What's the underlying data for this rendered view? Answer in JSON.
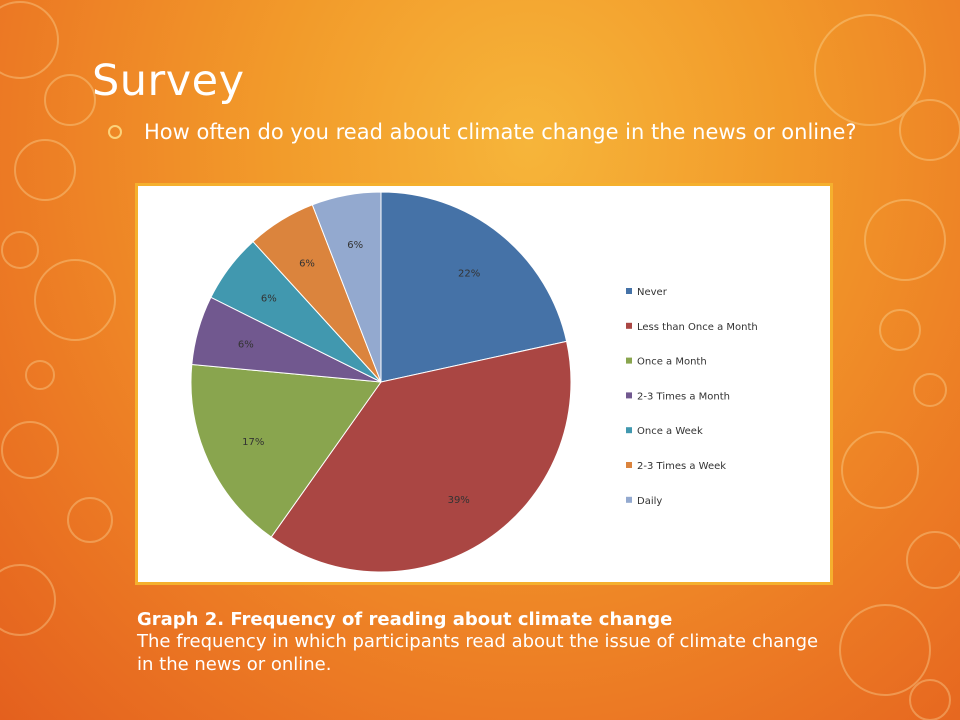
{
  "slide": {
    "title": "Survey",
    "question": "How often do you read about climate change in the news or online?"
  },
  "chart_data": {
    "type": "pie",
    "legend_position": "right",
    "categories": [
      "Never",
      "Less than Once a Month",
      "Once a Month",
      "2-3 Times a Month",
      "Once a Week",
      "2-3 Times a Week",
      "Daily"
    ],
    "values": [
      22,
      39,
      17,
      6,
      6,
      6,
      6
    ],
    "data_labels": [
      "22%",
      "39%",
      "17%",
      "6%",
      "6%",
      "6%",
      "6%"
    ],
    "colors": [
      "#4572a7",
      "#aa4643",
      "#89a54e",
      "#71588f",
      "#4198af",
      "#db843d",
      "#93a9cf"
    ]
  },
  "caption": {
    "title": "Graph 2. Frequency of reading about climate change",
    "body": "The frequency in which participants read about the issue of climate change in the news or online."
  }
}
